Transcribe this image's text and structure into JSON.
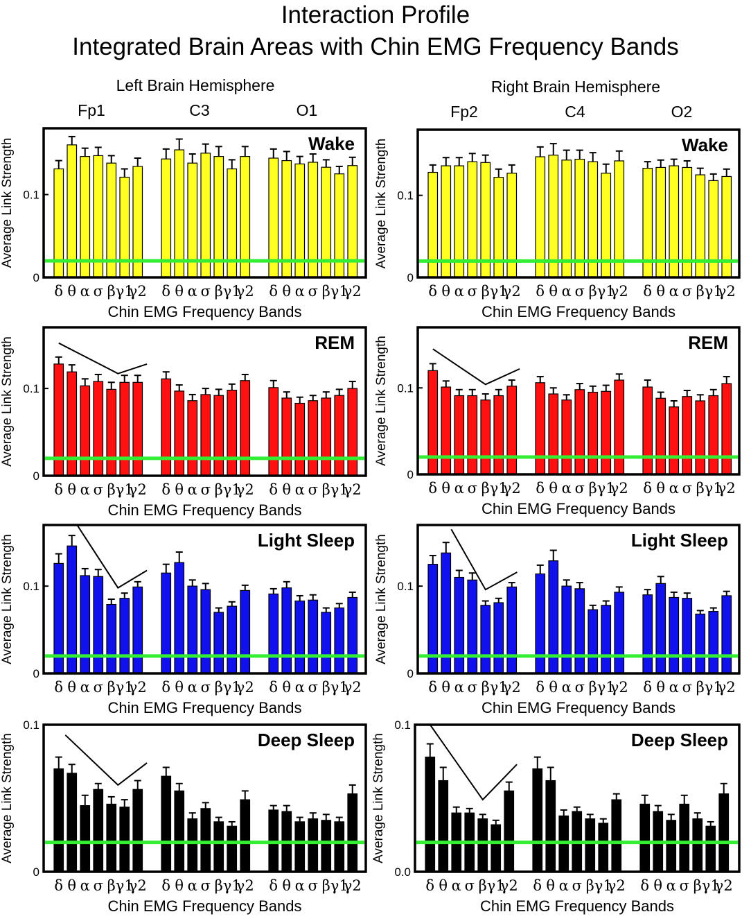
{
  "chart_data": {
    "type": "bar",
    "title": "Interaction Profile",
    "subtitle": "Integrated Brain Areas with Chin EMG Frequency Bands",
    "hemisphere_labels": [
      "Left Brain Hemisphere",
      "Right Brain Hemisphere"
    ],
    "channels": [
      [
        "Fp1",
        "C3",
        "O1"
      ],
      [
        "Fp2",
        "C4",
        "O2"
      ]
    ],
    "band_labels": [
      "δ",
      "θ",
      "α",
      "σ",
      "β",
      "γ1",
      "γ2"
    ],
    "xlabel": "Chin EMG Frequency Bands",
    "ylabel": "Average Link Strength",
    "threshold": 0.02,
    "threshold_color": "#33ee33",
    "panels": [
      {
        "stage": "Wake",
        "color": "#ffff22",
        "hemisphere": "left",
        "ylim": [
          0,
          0.18
        ],
        "yticks": [
          {
            "value": 0,
            "label": "0"
          },
          {
            "value": 0.1,
            "label": "0.1"
          }
        ],
        "channels": [
          {
            "values": [
              0.131,
              0.16,
              0.146,
              0.147,
              0.138,
              0.121,
              0.134
            ],
            "errors": [
              0.01,
              0.01,
              0.01,
              0.01,
              0.009,
              0.01,
              0.01
            ]
          },
          {
            "values": [
              0.143,
              0.154,
              0.138,
              0.15,
              0.146,
              0.131,
              0.146
            ],
            "errors": [
              0.012,
              0.013,
              0.011,
              0.011,
              0.012,
              0.011,
              0.012
            ]
          },
          {
            "values": [
              0.144,
              0.141,
              0.137,
              0.139,
              0.133,
              0.125,
              0.135
            ],
            "errors": [
              0.011,
              0.011,
              0.009,
              0.01,
              0.009,
              0.009,
              0.01
            ]
          }
        ],
        "trend_line": null
      },
      {
        "stage": "Wake",
        "color": "#ffff22",
        "hemisphere": "right",
        "ylim": [
          0,
          0.18
        ],
        "yticks": [
          {
            "value": 0,
            "label": "0"
          },
          {
            "value": 0.1,
            "label": "0.1"
          }
        ],
        "channels": [
          {
            "values": [
              0.128,
              0.136,
              0.136,
              0.141,
              0.14,
              0.122,
              0.127
            ],
            "errors": [
              0.009,
              0.01,
              0.01,
              0.01,
              0.009,
              0.01,
              0.01
            ]
          },
          {
            "values": [
              0.147,
              0.149,
              0.143,
              0.144,
              0.141,
              0.127,
              0.142
            ],
            "errors": [
              0.012,
              0.014,
              0.012,
              0.011,
              0.011,
              0.011,
              0.012
            ]
          },
          {
            "values": [
              0.133,
              0.134,
              0.136,
              0.134,
              0.125,
              0.118,
              0.123
            ],
            "errors": [
              0.008,
              0.009,
              0.008,
              0.008,
              0.008,
              0.008,
              0.009
            ]
          }
        ],
        "trend_line": null
      },
      {
        "stage": "REM",
        "color": "#ff1111",
        "hemisphere": "left",
        "ylim": [
          0,
          0.17
        ],
        "yticks": [
          {
            "value": 0,
            "label": "0"
          },
          {
            "value": 0.1,
            "label": "0.1"
          }
        ],
        "channels": [
          {
            "values": [
              0.128,
              0.119,
              0.103,
              0.108,
              0.099,
              0.107,
              0.107
            ],
            "errors": [
              0.008,
              0.008,
              0.008,
              0.008,
              0.008,
              0.008,
              0.008
            ]
          },
          {
            "values": [
              0.111,
              0.097,
              0.086,
              0.093,
              0.092,
              0.098,
              0.109
            ],
            "errors": [
              0.008,
              0.007,
              0.007,
              0.007,
              0.007,
              0.007,
              0.007
            ]
          },
          {
            "values": [
              0.101,
              0.089,
              0.083,
              0.086,
              0.089,
              0.092,
              0.1
            ],
            "errors": [
              0.008,
              0.007,
              0.007,
              0.006,
              0.007,
              0.007,
              0.008
            ]
          }
        ],
        "trend_line": [
          [
            0,
            0.152
          ],
          [
            4.5,
            0.117
          ],
          [
            6.7,
            0.128
          ]
        ]
      },
      {
        "stage": "REM",
        "color": "#ff1111",
        "hemisphere": "right",
        "ylim": [
          0,
          0.17
        ],
        "yticks": [
          {
            "value": 0,
            "label": "0"
          },
          {
            "value": 0.1,
            "label": "0.1"
          }
        ],
        "channels": [
          {
            "values": [
              0.12,
              0.101,
              0.091,
              0.091,
              0.086,
              0.091,
              0.102
            ],
            "errors": [
              0.008,
              0.007,
              0.007,
              0.007,
              0.007,
              0.007,
              0.007
            ]
          },
          {
            "values": [
              0.106,
              0.093,
              0.086,
              0.098,
              0.095,
              0.096,
              0.109
            ],
            "errors": [
              0.007,
              0.007,
              0.006,
              0.007,
              0.007,
              0.007,
              0.007
            ]
          },
          {
            "values": [
              0.101,
              0.088,
              0.078,
              0.09,
              0.085,
              0.091,
              0.105
            ],
            "errors": [
              0.008,
              0.007,
              0.007,
              0.007,
              0.007,
              0.007,
              0.008
            ]
          }
        ],
        "trend_line": [
          [
            0,
            0.145
          ],
          [
            4,
            0.104
          ],
          [
            6.6,
            0.122
          ]
        ]
      },
      {
        "stage": "Light Sleep",
        "color": "#1111ee",
        "hemisphere": "left",
        "ylim": [
          0,
          0.17
        ],
        "yticks": [
          {
            "value": 0,
            "label": "0"
          },
          {
            "value": 0.1,
            "label": "0.1"
          }
        ],
        "channels": [
          {
            "values": [
              0.126,
              0.146,
              0.112,
              0.111,
              0.079,
              0.086,
              0.099
            ],
            "errors": [
              0.011,
              0.012,
              0.008,
              0.008,
              0.006,
              0.006,
              0.006
            ]
          },
          {
            "values": [
              0.115,
              0.127,
              0.1,
              0.096,
              0.07,
              0.077,
              0.095
            ],
            "errors": [
              0.01,
              0.012,
              0.007,
              0.007,
              0.005,
              0.005,
              0.006
            ]
          },
          {
            "values": [
              0.091,
              0.098,
              0.083,
              0.084,
              0.07,
              0.075,
              0.087
            ],
            "errors": [
              0.006,
              0.007,
              0.006,
              0.006,
              0.005,
              0.005,
              0.006
            ]
          }
        ],
        "trend_line": [
          [
            1.4,
            0.17
          ],
          [
            4.5,
            0.098
          ],
          [
            6.7,
            0.118
          ]
        ]
      },
      {
        "stage": "Light Sleep",
        "color": "#1111ee",
        "hemisphere": "right",
        "ylim": [
          0,
          0.17
        ],
        "yticks": [
          {
            "value": 0,
            "label": "0"
          },
          {
            "value": 0.1,
            "label": "0.1"
          }
        ],
        "channels": [
          {
            "values": [
              0.125,
              0.138,
              0.11,
              0.107,
              0.078,
              0.081,
              0.099
            ],
            "errors": [
              0.01,
              0.012,
              0.008,
              0.008,
              0.005,
              0.005,
              0.005
            ]
          },
          {
            "values": [
              0.114,
              0.129,
              0.1,
              0.097,
              0.073,
              0.078,
              0.093
            ],
            "errors": [
              0.01,
              0.012,
              0.007,
              0.007,
              0.005,
              0.005,
              0.006
            ]
          },
          {
            "values": [
              0.09,
              0.103,
              0.087,
              0.086,
              0.068,
              0.071,
              0.089
            ],
            "errors": [
              0.006,
              0.008,
              0.006,
              0.006,
              0.004,
              0.004,
              0.005
            ]
          }
        ],
        "trend_line": [
          [
            1.4,
            0.165
          ],
          [
            4,
            0.096
          ],
          [
            6.4,
            0.116
          ]
        ]
      },
      {
        "stage": "Deep Sleep",
        "color": "#000000",
        "hemisphere": "left",
        "ylim": [
          0,
          0.1
        ],
        "yticks": [
          {
            "value": 0,
            "label": "0"
          },
          {
            "value": 0.1,
            "label": "0.1"
          }
        ],
        "channels": [
          {
            "values": [
              0.07,
              0.067,
              0.045,
              0.056,
              0.046,
              0.044,
              0.056
            ],
            "errors": [
              0.008,
              0.006,
              0.007,
              0.004,
              0.005,
              0.005,
              0.006
            ]
          },
          {
            "values": [
              0.065,
              0.055,
              0.036,
              0.043,
              0.034,
              0.031,
              0.049
            ],
            "errors": [
              0.006,
              0.005,
              0.004,
              0.004,
              0.003,
              0.003,
              0.006
            ]
          },
          {
            "values": [
              0.042,
              0.041,
              0.034,
              0.036,
              0.035,
              0.034,
              0.053
            ],
            "errors": [
              0.003,
              0.004,
              0.003,
              0.004,
              0.004,
              0.003,
              0.006
            ]
          }
        ],
        "trend_line": [
          [
            0.5,
            0.093
          ],
          [
            4.5,
            0.059
          ],
          [
            6.7,
            0.074
          ]
        ]
      },
      {
        "stage": "Deep Sleep",
        "color": "#000000",
        "hemisphere": "right",
        "ylim": [
          0,
          0.1
        ],
        "yticks": [
          {
            "value": 0,
            "label": "0.0"
          },
          {
            "value": 0.1,
            "label": "0.1"
          }
        ],
        "channels": [
          {
            "values": [
              0.078,
              0.062,
              0.04,
              0.04,
              0.036,
              0.032,
              0.055
            ],
            "errors": [
              0.009,
              0.009,
              0.004,
              0.003,
              0.003,
              0.003,
              0.006
            ]
          },
          {
            "values": [
              0.07,
              0.062,
              0.038,
              0.041,
              0.036,
              0.033,
              0.049
            ],
            "errors": [
              0.008,
              0.009,
              0.004,
              0.003,
              0.003,
              0.003,
              0.004
            ]
          },
          {
            "values": [
              0.046,
              0.041,
              0.035,
              0.046,
              0.036,
              0.031,
              0.053
            ],
            "errors": [
              0.006,
              0.004,
              0.004,
              0.006,
              0.004,
              0.003,
              0.007
            ]
          }
        ],
        "trend_line": [
          [
            0,
            0.1
          ],
          [
            4,
            0.049
          ],
          [
            6.6,
            0.073
          ]
        ]
      }
    ]
  }
}
